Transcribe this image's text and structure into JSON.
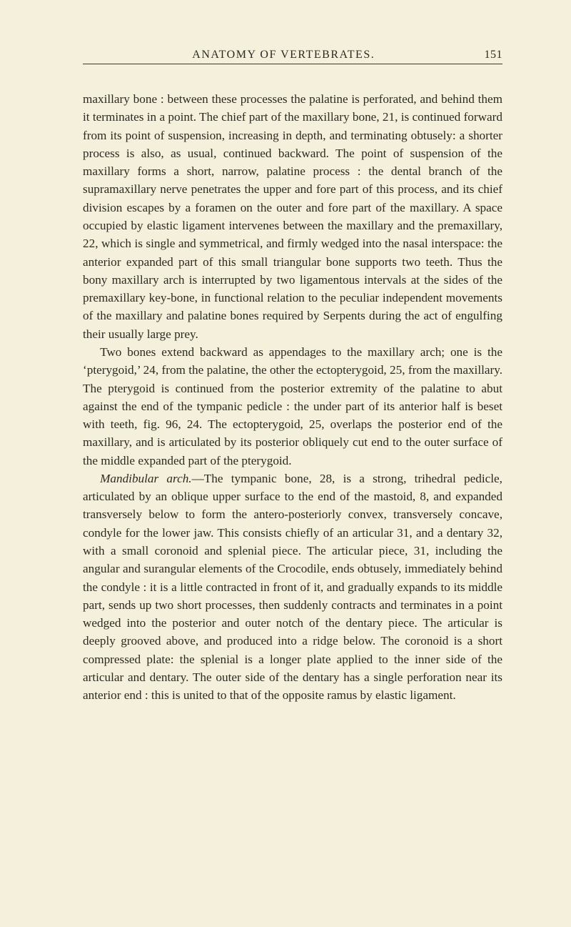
{
  "page": {
    "running_title": "ANATOMY OF VERTEBRATES.",
    "page_number": "151",
    "background_color": "#f5f0dc",
    "text_color": "#2a2a20",
    "font_family": "Georgia, 'Times New Roman', serif",
    "body_font_size": 17.2,
    "line_height": 1.47,
    "header_font_size": 16
  },
  "paragraphs": {
    "p1": "maxillary bone : between these processes the palatine is perforated, and behind them it terminates in a point. The chief part of the maxillary bone, 21, is continued forward from its point of suspen­sion, increasing in depth, and terminating obtusely: a shorter process is also, as usual, continued backward. The point of suspension of the maxillary forms a short, narrow, palatine process : the dental branch of the supramaxillary nerve penetrates the upper and fore part of this process, and its chief division escapes by a foramen on the outer and fore part of the maxillary. A space occupied by elastic ligament intervenes between the maxillary and the premaxillary, 22, which is single and symmetrical, and firmly wedged into the nasal interspace: the anterior expanded part of this small triangular bone supports two teeth. Thus the bony maxillary arch is interrupted by two ligamentous intervals at the sides of the premaxillary key-bone, in functional relation to the peculiar independent movements of the maxillary and palatine bones required by Serpents during the act of engulfing their usually large prey.",
    "p2": "Two bones extend backward as appendages to the maxillary arch; one is the ‘pterygoid,’ 24, from the palatine, the other the ectopterygoid, 25, from the maxillary. The pterygoid is continued from the posterior extremity of the palatine to abut against the end of the tympanic pedicle : the under part of its anterior half is beset with teeth, fig. 96, 24. The ectopterygoid, 25, overlaps the posterior end of the maxillary, and is articulated by its posterior obliquely cut end to the outer surface of the middle expanded part of the pterygoid.",
    "p3_lead": "Mandibular arch.",
    "p3_rest": "—The tympanic bone, 28, is a strong, trihedral pedicle, articulated by an oblique upper surface to the end of the mastoid, 8, and expanded transversely below to form the antero-posteriorly convex, transversely concave, condyle for the lower jaw. This consists chiefly of an articular 31, and a dentary 32, with a small coronoid and splenial piece. The articular piece, 31, including the angular and surangular elements of the Crocodile, ends ob­tusely, immediately behind the condyle : it is a little contracted in front of it, and gradually expands to its middle part, sends up two short processes, then suddenly contracts and terminates in a point wedged into the posterior and outer notch of the dentary piece. The articular is deeply grooved above, and produced into a ridge below. The coronoid is a short compressed plate: the splenial is a longer plate applied to the inner side of the articular and dentary. The outer side of the dentary has a single perforation near its anterior end : this is united to that of the opposite ramus by elastic ligament."
  }
}
